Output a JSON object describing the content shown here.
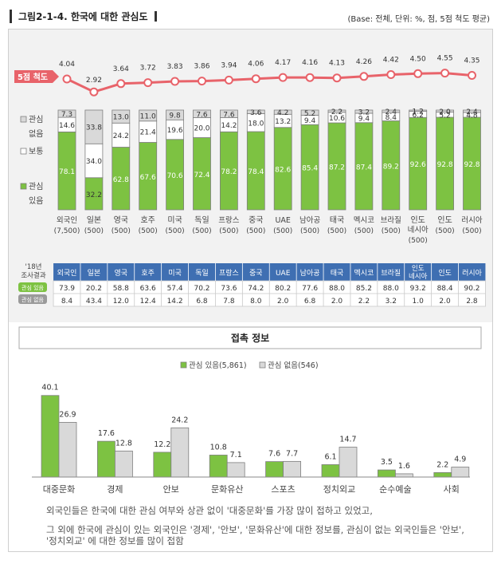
{
  "header": {
    "title": "그림2-1-4. 한국에 대한 관심도",
    "base_note": "(Base: 전체, 단위: %, 점, 5점 척도 평균)"
  },
  "colors": {
    "green": "#7dc242",
    "gray": "#d9d9d9",
    "red": "#e8636a",
    "bar_border": "#7f7f7f",
    "header_blue": "#3f6fb2"
  },
  "labels": {
    "five_point": "5점 척도",
    "legend_no_interest": [
      "관심",
      "없음"
    ],
    "legend_neutral": "보통",
    "legend_interest": [
      "관심",
      "있음"
    ],
    "survey_2018": [
      "'18년",
      "조사결과"
    ],
    "row_interest": "관심 있음",
    "row_no_interest": "관심 없음",
    "contact_title": "접촉 정보",
    "contact_legend_interest": "관심 있음(5,861)",
    "contact_legend_no_interest": "관심 없음(546)"
  },
  "notes": [
    "외국인들은 한국에 대한 관심 여부와 상관 없이 '대중문화'를 가장 많이 접하고 있었고,",
    "그 외에 한국에 관심이 있는 외국인은 '경제', '안보', '문화유산'에 대한 정보를, 관심이 없는 외국인들은 '안보',",
    "'정치외교' 에 대한 정보를 많이 접함"
  ],
  "chart_data": [
    {
      "type": "line",
      "title": "",
      "series": [
        {
          "name": "5점 척도",
          "values": [
            4.04,
            2.92,
            3.64,
            3.72,
            3.83,
            3.86,
            3.94,
            4.06,
            4.17,
            4.16,
            4.13,
            4.26,
            4.42,
            4.5,
            4.55,
            4.35
          ]
        }
      ],
      "categories": [
        "외국인",
        "일본",
        "영국",
        "호주",
        "미국",
        "독일",
        "프랑스",
        "중국",
        "UAE",
        "남아공",
        "태국",
        "멕시코",
        "브라질",
        "인도네시아",
        "인도",
        "러시아"
      ]
    },
    {
      "type": "bar",
      "stacked": true,
      "categories": [
        {
          "name": "외국인",
          "n": "(7,500)"
        },
        {
          "name": "일본",
          "n": "(500)"
        },
        {
          "name": "영국",
          "n": "(500)"
        },
        {
          "name": "호주",
          "n": "(500)"
        },
        {
          "name": "미국",
          "n": "(500)"
        },
        {
          "name": "독일",
          "n": "(500)"
        },
        {
          "name": "프랑스",
          "n": "(500)"
        },
        {
          "name": "중국",
          "n": "(500)"
        },
        {
          "name": "UAE",
          "n": "(500)"
        },
        {
          "name": "남아공",
          "n": "(500)"
        },
        {
          "name": "태국",
          "n": "(500)"
        },
        {
          "name": "멕시코",
          "n": "(500)"
        },
        {
          "name": "브라질",
          "n": "(500)"
        },
        {
          "name": "인도 네시아",
          "n": "(500)"
        },
        {
          "name": "인도",
          "n": "(500)"
        },
        {
          "name": "러시아",
          "n": "(500)"
        }
      ],
      "series": [
        {
          "name": "관심 있음",
          "values": [
            78.1,
            32.2,
            62.8,
            67.6,
            70.6,
            72.4,
            78.2,
            78.4,
            82.6,
            85.4,
            87.2,
            87.4,
            89.2,
            92.6,
            92.8,
            92.8
          ]
        },
        {
          "name": "보통",
          "values": [
            14.6,
            34.0,
            24.2,
            21.4,
            19.6,
            20.0,
            14.2,
            18.0,
            13.2,
            9.4,
            10.6,
            9.4,
            8.4,
            6.2,
            5.2,
            4.8
          ]
        },
        {
          "name": "관심 없음",
          "values": [
            7.3,
            33.8,
            13.0,
            11.0,
            9.8,
            7.6,
            7.6,
            3.6,
            4.2,
            5.2,
            2.2,
            3.2,
            2.4,
            1.2,
            2.0,
            2.4
          ]
        }
      ],
      "ylim": [
        0,
        100
      ]
    },
    {
      "type": "table",
      "title": "'18년 조사결과",
      "columns": [
        "외국인",
        "일본",
        "영국",
        "호주",
        "미국",
        "독일",
        "프랑스",
        "중국",
        "UAE",
        "남아공",
        "태국",
        "멕시코",
        "브라질",
        "인도 네시아",
        "인도",
        "러시아"
      ],
      "rows": [
        {
          "name": "관심 있음",
          "values": [
            "73.9",
            "20.2",
            "58.8",
            "63.6",
            "57.4",
            "70.2",
            "73.6",
            "74.2",
            "80.2",
            "77.6",
            "88.0",
            "85.2",
            "88.0",
            "93.2",
            "88.4",
            "90.2"
          ]
        },
        {
          "name": "관심 없음",
          "values": [
            "8.4",
            "43.4",
            "12.0",
            "12.4",
            "14.2",
            "6.8",
            "7.8",
            "8.0",
            "2.0",
            "6.8",
            "2.0",
            "2.2",
            "3.2",
            "1.0",
            "2.0",
            "2.8"
          ]
        }
      ]
    },
    {
      "type": "bar",
      "title": "접촉 정보",
      "categories": [
        "대중문화",
        "경제",
        "안보",
        "문화유산",
        "스포츠",
        "정치외교",
        "순수예술",
        "사회"
      ],
      "series": [
        {
          "name": "관심 있음(5,861)",
          "values": [
            40.1,
            17.6,
            12.2,
            10.8,
            7.6,
            6.1,
            3.5,
            2.2
          ]
        },
        {
          "name": "관심 없음(546)",
          "values": [
            26.9,
            12.8,
            24.2,
            7.1,
            7.7,
            14.7,
            1.6,
            4.9
          ]
        }
      ]
    }
  ]
}
